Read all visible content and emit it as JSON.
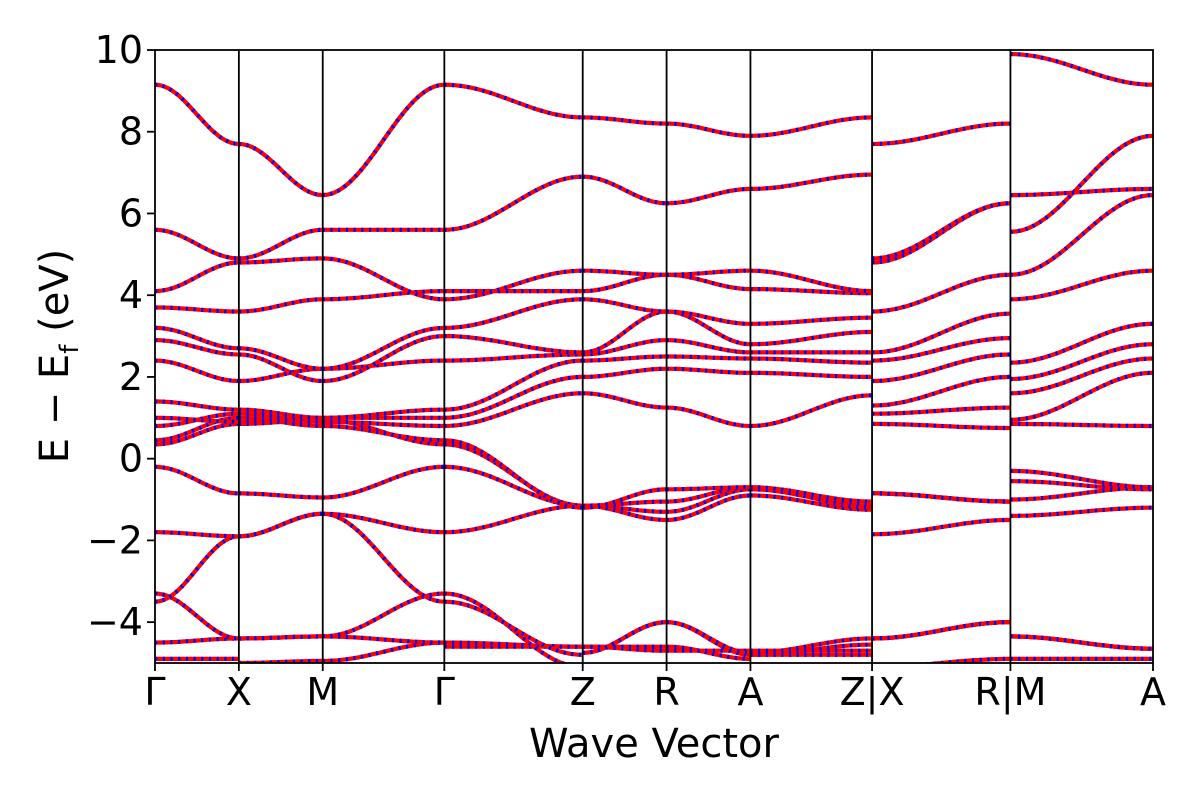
{
  "chart_data": {
    "type": "line",
    "title": "",
    "xlabel": "Wave Vector",
    "ylabel": "E − E",
    "ylabel_sub": "f",
    "ylabel_unit": " (eV)",
    "ylim": [
      -5,
      10
    ],
    "yticks": [
      -4,
      -2,
      0,
      2,
      4,
      6,
      8,
      10
    ],
    "ytick_labels": [
      "−4",
      "−2",
      "0",
      "2",
      "4",
      "6",
      "8",
      "10"
    ],
    "xlim": [
      0,
      11.9
    ],
    "kpoints": [
      {
        "label": "Γ",
        "x": 0
      },
      {
        "label": "X",
        "x": 1
      },
      {
        "label": "M",
        "x": 2
      },
      {
        "label": "Γ",
        "x": 3.45
      },
      {
        "label": "Z",
        "x": 5.1
      },
      {
        "label": "R",
        "x": 6.1
      },
      {
        "label": "A",
        "x": 7.1
      },
      {
        "label": "Z|X",
        "x": 8.55
      },
      {
        "label": "R|M",
        "x": 10.2
      },
      {
        "label": "A",
        "x": 11.9
      }
    ],
    "segments": [
      [
        0,
        1
      ],
      [
        1,
        2
      ],
      [
        2,
        3.45
      ],
      [
        3.45,
        5.1
      ],
      [
        5.1,
        6.1
      ],
      [
        6.1,
        7.1
      ],
      [
        7.1,
        8.55
      ],
      [
        8.55,
        10.2
      ],
      [
        10.2,
        11.9
      ]
    ],
    "series": [
      {
        "color": "#ff0000",
        "style": "solid"
      },
      {
        "color": "#0000ff",
        "style": "dashed"
      }
    ],
    "band_node_values": [
      [
        [
          -4.9,
          -4.9
        ],
        [
          -5.0,
          -4.95
        ],
        [
          -4.95,
          -4.5
        ],
        [
          -4.6,
          -4.6
        ],
        [
          -4.6,
          -4.6
        ],
        [
          -4.6,
          -4.9
        ],
        [
          -4.8,
          -4.8
        ],
        [
          -5.1,
          -4.9
        ],
        [
          -4.9,
          -4.9
        ]
      ],
      [
        [
          -4.5,
          -4.4
        ],
        [
          -4.4,
          -4.35
        ],
        [
          -4.35,
          -4.5
        ],
        [
          -4.5,
          -4.6
        ],
        [
          -4.6,
          -4.7
        ],
        [
          -4.7,
          -4.7
        ],
        [
          -4.7,
          -4.7
        ],
        [
          -4.4,
          -4.0
        ],
        [
          -4.35,
          -4.65
        ]
      ],
      [
        [
          -3.3,
          -4.4
        ],
        [
          -4.4,
          -4.35
        ],
        [
          -4.35,
          -3.3
        ],
        [
          -3.3,
          -5.1
        ],
        [
          -4.75,
          -4.0
        ],
        [
          -4.0,
          -4.8
        ],
        [
          -4.8,
          -4.55
        ],
        [
          -4.4,
          -4.0
        ],
        [
          -4.35,
          -4.65
        ]
      ],
      [
        [
          -3.5,
          -1.9
        ],
        [
          -1.9,
          -1.35
        ],
        [
          -1.35,
          -3.5
        ],
        [
          -3.5,
          -4.8
        ],
        [
          -4.75,
          -4.0
        ],
        [
          -4.0,
          -4.75
        ],
        [
          -4.75,
          -4.4
        ],
        [
          -4.4,
          -4.0
        ],
        [
          -4.35,
          -4.65
        ]
      ],
      [
        [
          -1.8,
          -1.9
        ],
        [
          -1.9,
          -1.35
        ],
        [
          -1.35,
          -1.8
        ],
        [
          -1.8,
          -1.15
        ],
        [
          -1.15,
          -1.5
        ],
        [
          -1.5,
          -0.9
        ],
        [
          -0.9,
          -1.25
        ],
        [
          -1.85,
          -1.5
        ],
        [
          -1.4,
          -1.2
        ]
      ],
      [
        [
          -0.2,
          -0.85
        ],
        [
          -0.85,
          -0.95
        ],
        [
          -0.95,
          -0.2
        ],
        [
          -0.2,
          -1.15
        ],
        [
          -1.15,
          -1.3
        ],
        [
          -1.3,
          -0.75
        ],
        [
          -0.75,
          -1.15
        ],
        [
          -0.85,
          -1.05
        ],
        [
          -1.0,
          -0.7
        ]
      ],
      [
        [
          0.35,
          0.85
        ],
        [
          0.85,
          0.95
        ],
        [
          0.95,
          0.35
        ],
        [
          0.35,
          -1.15
        ],
        [
          -1.15,
          -1.05
        ],
        [
          -1.05,
          -0.7
        ],
        [
          -0.7,
          -1.2
        ],
        [
          -0.85,
          -1.05
        ],
        [
          -0.55,
          -0.75
        ]
      ],
      [
        [
          0.45,
          1.0
        ],
        [
          1.0,
          0.8
        ],
        [
          0.8,
          0.45
        ],
        [
          0.45,
          -1.2
        ],
        [
          -1.2,
          -0.75
        ],
        [
          -0.75,
          -0.7
        ],
        [
          -0.7,
          -1.05
        ],
        [
          -0.85,
          -1.05
        ],
        [
          -0.3,
          -0.7
        ]
      ],
      [
        [
          0.8,
          1.1
        ],
        [
          1.1,
          0.9
        ],
        [
          0.9,
          0.8
        ],
        [
          0.8,
          1.6
        ],
        [
          1.6,
          1.25
        ],
        [
          1.25,
          0.8
        ],
        [
          0.8,
          1.55
        ],
        [
          0.85,
          0.75
        ],
        [
          0.85,
          0.8
        ]
      ],
      [
        [
          1.0,
          0.9
        ],
        [
          0.9,
          1.0
        ],
        [
          1.0,
          1.0
        ],
        [
          1.0,
          2.0
        ],
        [
          2.0,
          2.2
        ],
        [
          2.2,
          2.1
        ],
        [
          2.1,
          2.0
        ],
        [
          1.1,
          1.25
        ],
        [
          0.95,
          2.1
        ]
      ],
      [
        [
          1.4,
          1.2
        ],
        [
          1.2,
          1.0
        ],
        [
          1.0,
          1.2
        ],
        [
          1.2,
          2.4
        ],
        [
          2.4,
          2.5
        ],
        [
          2.5,
          2.45
        ],
        [
          2.45,
          2.35
        ],
        [
          1.3,
          2.0
        ],
        [
          1.6,
          2.45
        ]
      ],
      [
        [
          2.4,
          1.9
        ],
        [
          1.9,
          2.2
        ],
        [
          2.2,
          2.4
        ],
        [
          2.4,
          2.55
        ],
        [
          2.55,
          2.9
        ],
        [
          2.9,
          2.6
        ],
        [
          2.6,
          2.6
        ],
        [
          1.9,
          2.55
        ],
        [
          1.95,
          2.8
        ]
      ],
      [
        [
          2.9,
          2.55
        ],
        [
          2.55,
          1.9
        ],
        [
          1.9,
          3.0
        ],
        [
          3.0,
          2.6
        ],
        [
          2.6,
          3.6
        ],
        [
          3.6,
          2.8
        ],
        [
          2.8,
          3.1
        ],
        [
          2.4,
          2.95
        ],
        [
          2.35,
          3.3
        ]
      ],
      [
        [
          3.2,
          2.7
        ],
        [
          2.7,
          2.2
        ],
        [
          2.2,
          3.2
        ],
        [
          3.2,
          3.9
        ],
        [
          3.9,
          3.6
        ],
        [
          3.6,
          3.3
        ],
        [
          3.3,
          3.45
        ],
        [
          2.6,
          3.55
        ],
        [
          3.9,
          4.6
        ]
      ],
      [
        [
          3.7,
          3.6
        ],
        [
          3.6,
          3.9
        ],
        [
          3.9,
          4.1
        ],
        [
          4.1,
          4.1
        ],
        [
          4.1,
          4.5
        ],
        [
          4.5,
          4.15
        ],
        [
          4.15,
          4.05
        ],
        [
          3.6,
          4.5
        ],
        [
          4.5,
          6.45
        ]
      ],
      [
        [
          4.1,
          4.8
        ],
        [
          4.8,
          4.9
        ],
        [
          4.9,
          3.9
        ],
        [
          3.9,
          4.6
        ],
        [
          4.6,
          4.5
        ],
        [
          4.5,
          4.6
        ],
        [
          4.6,
          4.1
        ],
        [
          4.8,
          6.25
        ],
        [
          5.55,
          7.9
        ]
      ],
      [
        [
          5.6,
          4.9
        ],
        [
          4.9,
          5.6
        ],
        [
          5.6,
          5.6
        ],
        [
          5.6,
          6.9
        ],
        [
          6.9,
          6.25
        ],
        [
          6.25,
          6.6
        ],
        [
          6.6,
          6.95
        ],
        [
          4.9,
          6.25
        ],
        [
          6.45,
          6.6
        ]
      ],
      [
        [
          9.15,
          7.7
        ],
        [
          7.7,
          6.45
        ],
        [
          6.45,
          9.15
        ],
        [
          9.15,
          8.35
        ],
        [
          8.35,
          8.2
        ],
        [
          8.2,
          7.9
        ],
        [
          7.9,
          8.35
        ],
        [
          7.7,
          8.2
        ],
        [
          9.9,
          9.15
        ]
      ]
    ]
  }
}
